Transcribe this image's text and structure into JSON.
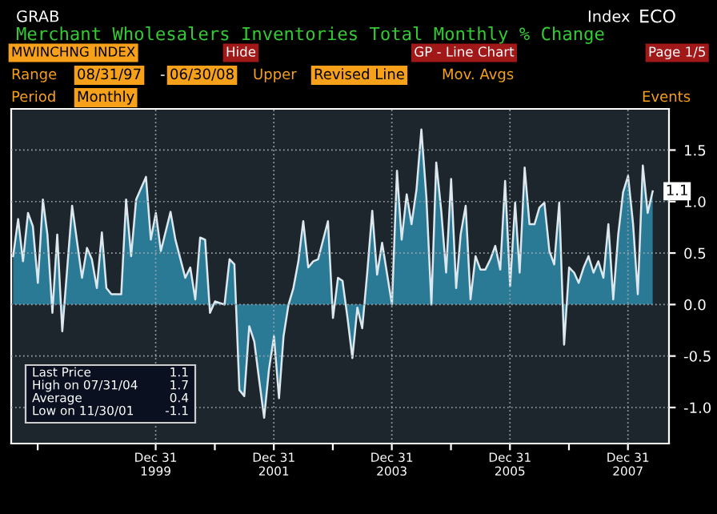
{
  "chart_data": {
    "type": "area",
    "title": "Merchant Wholesalers Inventories Total Monthly % Change",
    "x": [
      "1997-08",
      "1997-09",
      "1997-10",
      "1997-11",
      "1997-12",
      "1998-01",
      "1998-02",
      "1998-03",
      "1998-04",
      "1998-05",
      "1998-06",
      "1998-08",
      "1998-10",
      "1998-11",
      "1998-12",
      "1999-01",
      "1999-02",
      "1999-03",
      "1999-04",
      "1999-06",
      "1999-07",
      "1999-08",
      "1999-09",
      "1999-11",
      "1999-12",
      "2000-01",
      "2000-02",
      "2000-04",
      "2000-05",
      "2000-07",
      "2000-08",
      "2000-09",
      "2000-10",
      "2000-11",
      "2000-12",
      "2001-01",
      "2001-03",
      "2001-04",
      "2001-05",
      "2001-06",
      "2001-07",
      "2001-08",
      "2001-09",
      "2001-10",
      "2001-11",
      "2001-12",
      "2002-01",
      "2002-02",
      "2002-03",
      "2002-04",
      "2002-05",
      "2002-06",
      "2002-07",
      "2002-08",
      "2002-09",
      "2002-10",
      "2002-12",
      "2003-01",
      "2003-02",
      "2003-03",
      "2003-04",
      "2003-05",
      "2003-06",
      "2003-07",
      "2003-08",
      "2003-09",
      "2003-10",
      "2003-11",
      "2004-01",
      "2004-02",
      "2004-03",
      "2004-04",
      "2004-05",
      "2004-06",
      "2004-07",
      "2004-08",
      "2004-09",
      "2004-10",
      "2004-11",
      "2004-12",
      "2005-01",
      "2005-02",
      "2005-03",
      "2005-04",
      "2005-05",
      "2005-06",
      "2005-07",
      "2005-08",
      "2005-09",
      "2005-10",
      "2005-11",
      "2005-12",
      "2006-01",
      "2006-02",
      "2006-03",
      "2006-04",
      "2006-05",
      "2006-06",
      "2006-07",
      "2006-08",
      "2006-09",
      "2006-10",
      "2006-11",
      "2006-12",
      "2007-01",
      "2007-02",
      "2007-03",
      "2007-04",
      "2007-05",
      "2007-06",
      "2007-07",
      "2007-08",
      "2007-09",
      "2007-10",
      "2007-11",
      "2007-12",
      "2008-01",
      "2008-02",
      "2008-03",
      "2008-04",
      "2008-05",
      "2008-06"
    ],
    "series": [
      {
        "color": "#2a7a96",
        "values": [
          0.47,
          0.83,
          0.42,
          0.89,
          0.76,
          0.21,
          1.02,
          0.68,
          -0.08,
          0.68,
          -0.26,
          0.96,
          0.26,
          0.55,
          0.44,
          0.16,
          0.7,
          0.16,
          0.1,
          0.1,
          1.02,
          0.47,
          1.02,
          1.24,
          0.63,
          0.89,
          0.52,
          0.9,
          0.63,
          0.26,
          0.36,
          0.05,
          0.65,
          0.63,
          -0.08,
          0.03,
          0.0,
          0.44,
          0.39,
          -0.83,
          -0.89,
          -0.21,
          -0.36,
          -0.73,
          -1.1,
          -0.63,
          -0.31,
          -0.91,
          -0.31,
          0.0,
          0.16,
          0.42,
          0.81,
          0.36,
          0.42,
          0.44,
          0.81,
          -0.13,
          0.26,
          0.23,
          -0.13,
          -0.52,
          -0.03,
          -0.23,
          0.31,
          0.91,
          0.29,
          0.6,
          0.0,
          1.3,
          0.63,
          1.07,
          0.78,
          1.12,
          1.7,
          1.04,
          0.0,
          1.38,
          0.91,
          0.31,
          1.22,
          0.16,
          0.68,
          0.96,
          0.05,
          0.47,
          0.34,
          0.34,
          0.44,
          0.57,
          0.34,
          1.2,
          0.18,
          0.99,
          0.31,
          1.33,
          0.78,
          0.78,
          0.94,
          0.99,
          0.52,
          0.39,
          0.99,
          -0.39,
          0.36,
          0.31,
          0.21,
          0.36,
          0.47,
          0.31,
          0.42,
          0.26,
          0.78,
          0.05,
          0.68,
          1.09,
          1.25,
          0.78,
          0.1,
          1.35,
          0.89,
          1.1
        ]
      }
    ],
    "xlim": [
      "1997-07-20",
      "2008-09-10"
    ],
    "xticks": [
      {
        "value": "1997-12-31",
        "label": null
      },
      {
        "value": "1999-12-31",
        "label": "Dec 31\n1999"
      },
      {
        "value": "2000-12-31",
        "label": null
      },
      {
        "value": "2001-12-31",
        "label": "Dec 31\n2001"
      },
      {
        "value": "2002-12-31",
        "label": null
      },
      {
        "value": "2003-12-31",
        "label": "Dec 31\n2003"
      },
      {
        "value": "2004-12-31",
        "label": null
      },
      {
        "value": "2005-12-31",
        "label": "Dec 31\n2005"
      },
      {
        "value": "2006-12-31",
        "label": null
      },
      {
        "value": "2007-12-31",
        "label": "Dec 31\n2007"
      }
    ],
    "ylim": [
      -1.35,
      1.9
    ],
    "yticks": [
      {
        "value": -1,
        "label": "-1.0"
      },
      {
        "value": -0.5,
        "label": "-0.5"
      },
      {
        "value": 0,
        "label": "0.0"
      },
      {
        "value": 0.5,
        "label": "0.5"
      },
      {
        "value": 1,
        "label": "1.0"
      },
      {
        "value": 1.5,
        "label": "1.5"
      }
    ],
    "grid": true,
    "annotations": [
      "GRAB",
      "Index",
      "ECO",
      "MWINCHNG INDEX",
      "Hide",
      "GP - Line Chart",
      "Page 1/5",
      "Range",
      "08/31/97",
      "-",
      "06/30/08",
      "Upper",
      "Revised Line",
      "Mov. Avgs",
      "Period",
      "Monthly",
      "Events",
      "Last Price",
      "1.1",
      "High on 07/31/04",
      "1.7",
      "Average",
      "0.4",
      "Low on 11/30/01",
      "-1.1",
      {
        "text": "1.1",
        "x": "2008-06",
        "y": 1.1
      }
    ]
  }
}
